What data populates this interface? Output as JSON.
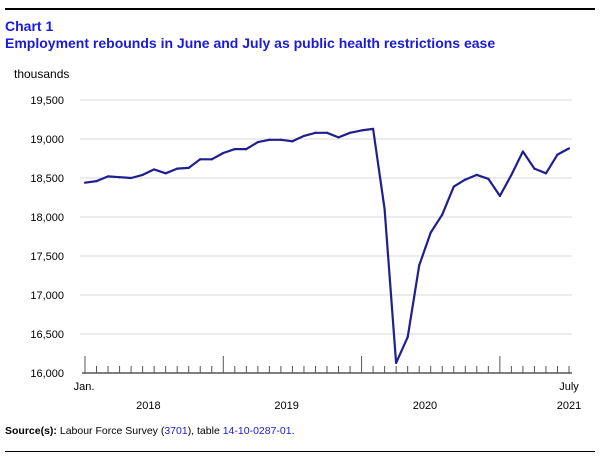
{
  "header": {
    "label": "Chart 1",
    "title": "Employment rebounds in June and July as public health restrictions ease"
  },
  "chart_data": {
    "type": "line",
    "ylabel": "thousands",
    "ylim": [
      16000,
      19500
    ],
    "yticks": [
      "16,000",
      "16,500",
      "17,000",
      "17,500",
      "18,000",
      "18,500",
      "19,000",
      "19,500"
    ],
    "ytick_values": [
      16000,
      16500,
      17000,
      17500,
      18000,
      18500,
      19000,
      19500
    ],
    "x_start_label": "Jan.",
    "x_end_label": "July",
    "year_labels": [
      "2018",
      "2019",
      "2020",
      "2021"
    ],
    "months_per_year": 12,
    "series": [
      {
        "name": "Employment",
        "color": "#1f1f8f",
        "values": [
          18440,
          18460,
          18520,
          18510,
          18500,
          18540,
          18610,
          18560,
          18620,
          18630,
          18740,
          18740,
          18820,
          18870,
          18870,
          18960,
          18990,
          18990,
          18970,
          19040,
          19080,
          19080,
          19020,
          19080,
          19110,
          19130,
          18100,
          16130,
          16460,
          17380,
          17800,
          18030,
          18390,
          18480,
          18540,
          18490,
          18270,
          18540,
          18840,
          18620,
          18560,
          18800,
          18880
        ]
      }
    ]
  },
  "source": {
    "label": "Source(s):",
    "text_before": " Labour Force Survey (",
    "link1": "3701",
    "text_middle": "), table ",
    "link2": "14-10-0287-01",
    "text_after": "."
  }
}
